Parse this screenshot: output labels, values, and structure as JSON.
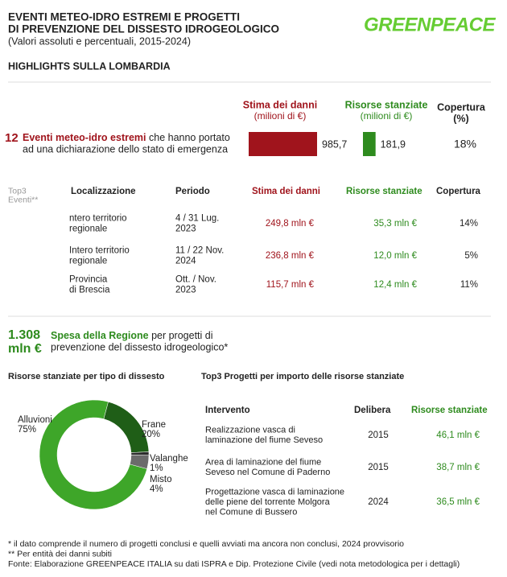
{
  "header": {
    "title_lines": [
      "EVENTI METEO-IDRO ESTREMI E PROGETTI",
      "DI PREVENZIONE DEL DISSESTO IDROGEOLOGICO"
    ],
    "subtitle": "(Valori assoluti e percentuali, 2015-2024)",
    "logo": "GREENPEACE"
  },
  "section_title": "HIGHLIGHTS SULLA LOMBARDIA",
  "highlight": {
    "damage_header": "Stima dei danni",
    "damage_unit": "(milioni di €)",
    "funds_header": "Risorse stanziate",
    "funds_unit": "(milioni di €)",
    "coverage_header": "Copertura",
    "coverage_unit": "(%)",
    "count": 12,
    "count_label": "Eventi meteo-idro estremi",
    "description_rest": "che hanno portato",
    "description_line2": "ad una dichiarazione dello stato di emergenza",
    "values": [
      985.7,
      181.9
    ],
    "value_labels": [
      "985,7",
      "181,9"
    ],
    "colors": [
      "#a0141c",
      "#2e8b1e"
    ],
    "coverage": "18%"
  },
  "events_table": {
    "corner": [
      "Top3",
      "Eventi**"
    ],
    "columns": [
      "Localizzazione",
      "Periodo",
      "Stima dei danni",
      "Risorse stanziate",
      "Copertura"
    ],
    "rows": [
      [
        [
          "ntero territorio",
          "regionale"
        ],
        [
          "4 / 31 Lug.",
          "2023"
        ],
        "249,8 mln €",
        "35,3 mln €",
        "14%"
      ],
      [
        [
          "Intero territorio",
          "regionale"
        ],
        [
          "11 / 22 Nov.",
          "2024"
        ],
        "236,8 mln €",
        "12,0 mln €",
        "5%"
      ],
      [
        [
          "Provincia",
          "di Brescia"
        ],
        [
          "Ott. / Nov.",
          "2023"
        ],
        "115,7 mln €",
        "12,4 mln €",
        "11%"
      ]
    ]
  },
  "regional": {
    "amount": "1.308",
    "unit": "mln €",
    "label": "Spesa della Regione",
    "rest": "per progetti di",
    "line2": "prevenzione del dissesto idrogeologico*"
  },
  "chart_data": {
    "type": "pie",
    "donut": true,
    "title": "Risorse stanziate per tipo di dissesto",
    "categories": [
      "Alluvioni",
      "Frane",
      "Valanghe",
      "Misto"
    ],
    "values": [
      75,
      20,
      1,
      4
    ],
    "value_labels": [
      "75%",
      "20%",
      "1%",
      "4%"
    ],
    "colors": [
      "#3ea629",
      "#1f5e17",
      "#2b2b2b",
      "#6b6b6b"
    ]
  },
  "projects_table": {
    "title": "Top3 Progetti per importo delle risorse stanziate",
    "columns": [
      "Intervento",
      "Delibera",
      "Risorse stanziate"
    ],
    "rows": [
      [
        [
          "Realizzazione vasca di",
          "laminazione del fiume Seveso"
        ],
        "2015",
        "46,1 mln €"
      ],
      [
        [
          "Area di laminazione del fiume",
          "Seveso nel Comune di Paderno"
        ],
        "2015",
        "38,7 mln €"
      ],
      [
        [
          "Progettazione vasca di laminazione",
          "delle piene del torrente Molgora",
          "nel Comune di Bussero"
        ],
        "2024",
        "36,5 mln €"
      ]
    ]
  },
  "footnotes": [
    "* il dato comprende il numero di progetti conclusi e quelli avviati ma ancora non conclusi, 2024 provvisorio",
    "** Per entità dei danni subiti",
    "Fonte: Elaborazione GREENPEACE ITALIA su dati ISPRA e Dip. Protezione Civile (vedi nota metodologica per i dettagli)"
  ]
}
